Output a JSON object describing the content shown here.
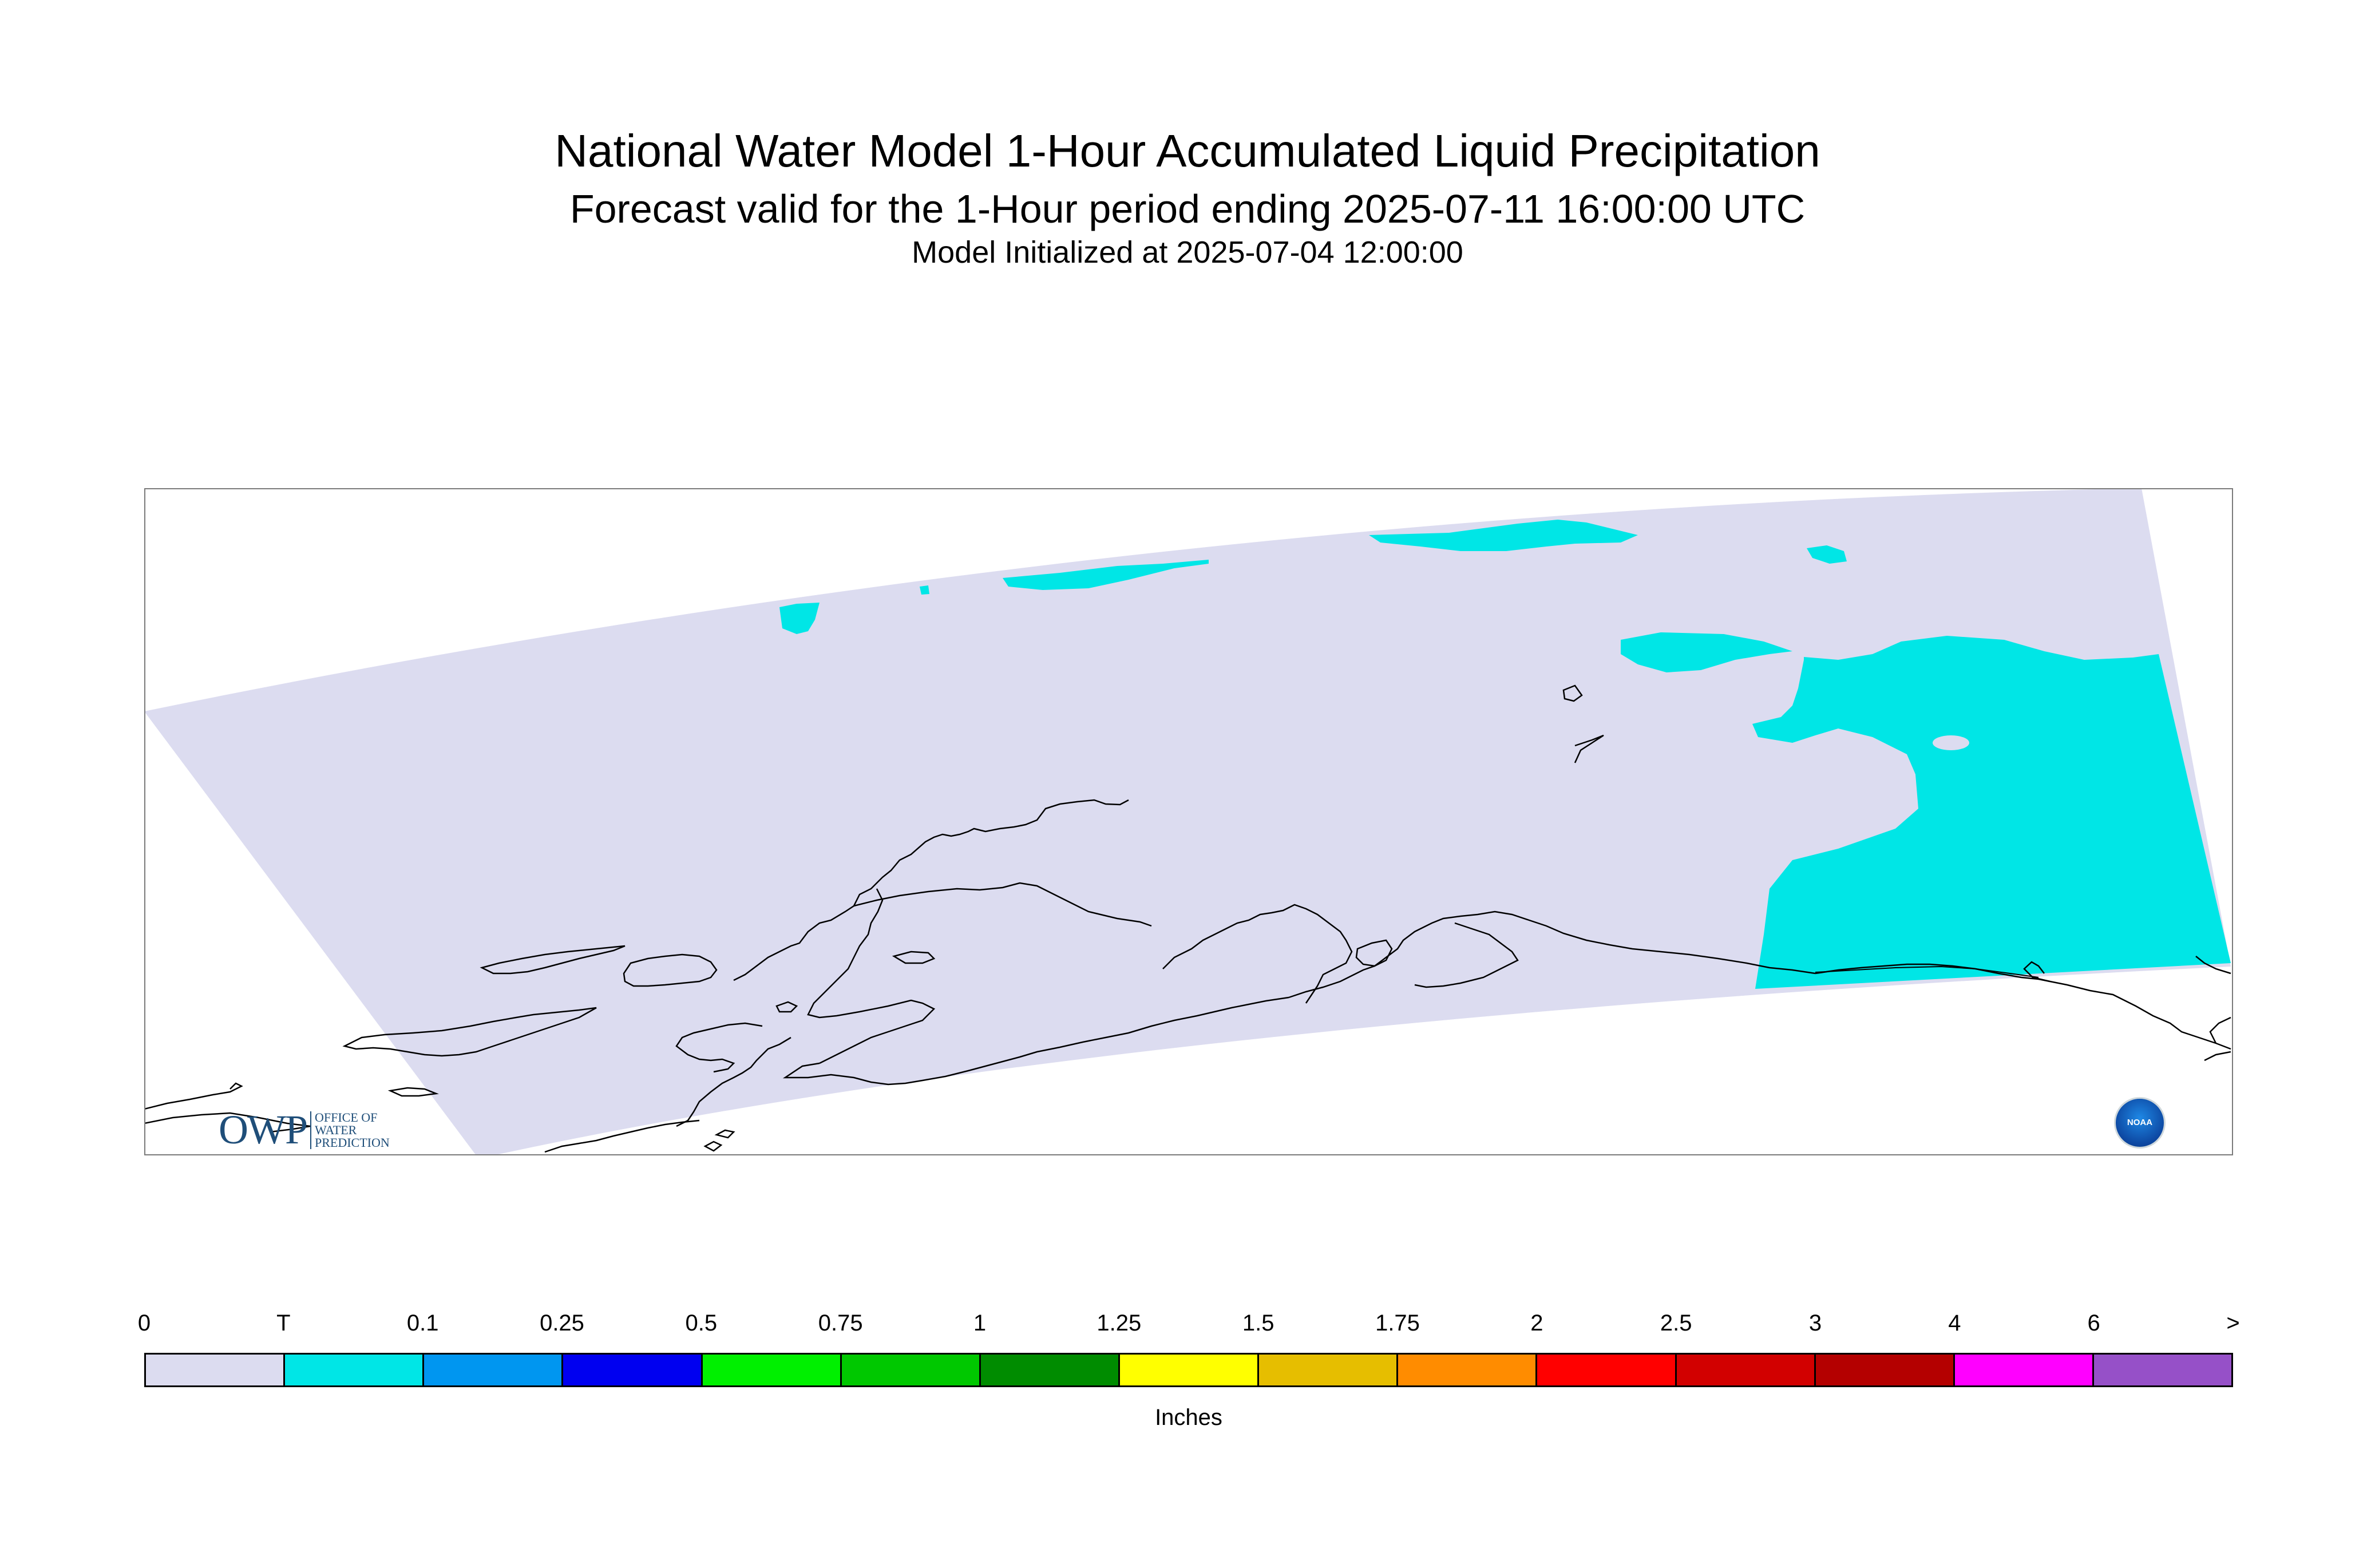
{
  "header": {
    "title": "National Water Model 1-Hour Accumulated Liquid Precipitation",
    "subtitle": "Forecast valid for the 1-Hour period ending 2025-07-11 16:00:00 UTC",
    "init": "Model Initialized at 2025-07-04 12:00:00"
  },
  "logos": {
    "owp_mark": "OWP",
    "owp_lines": [
      "OFFICE OF",
      "WATER",
      "PREDICTION"
    ],
    "noaa": "NOAA"
  },
  "map": {
    "region": "Alaska",
    "domain_color": "#dcdcf0",
    "precip_color": "#00e6e6",
    "coastline_color": "#000000"
  },
  "legend": {
    "units": "Inches",
    "ticks": [
      "0",
      "T",
      "0.1",
      "0.25",
      "0.5",
      "0.75",
      "1",
      "1.25",
      "1.5",
      "1.75",
      "2",
      "2.5",
      "3",
      "4",
      "6",
      ">"
    ],
    "colors": [
      "#dcdcf0",
      "#00e6e6",
      "#0096f0",
      "#0000f0",
      "#00f000",
      "#00c800",
      "#008c00",
      "#ffff00",
      "#e6be00",
      "#ff8c00",
      "#ff0000",
      "#d20000",
      "#b40000",
      "#ff00ff",
      "#9650c8"
    ]
  }
}
